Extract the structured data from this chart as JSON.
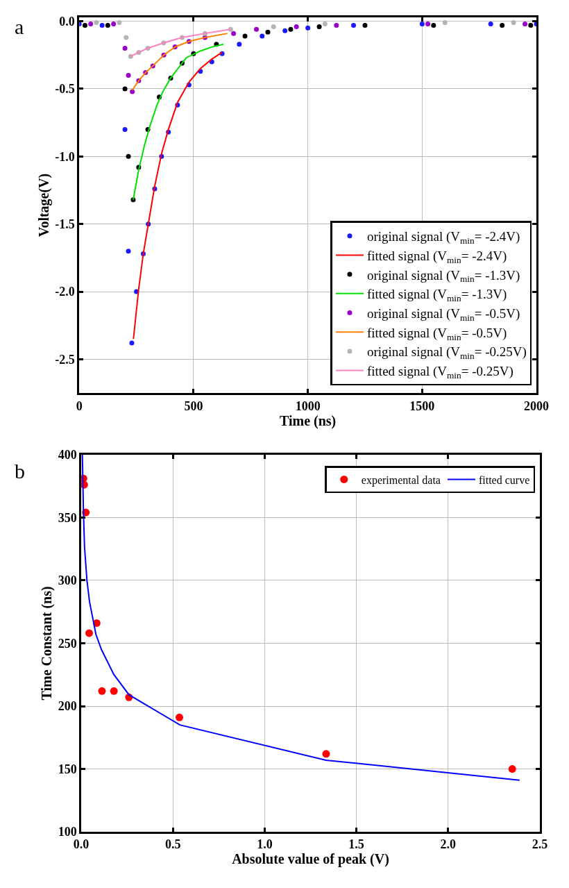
{
  "chart_data": [
    {
      "type": "scatter",
      "xlabel": "Time (ns)",
      "ylabel": "Voltage(V)",
      "annotations": [
        "a"
      ],
      "xlim": [
        0,
        2000
      ],
      "xticks": [
        0,
        500,
        1000,
        1500,
        2000
      ],
      "ylim": [
        -2.75,
        0.03
      ],
      "yticks": [
        {
          "value": 0,
          "label": "0.0"
        },
        -0.5,
        {
          "value": -1,
          "label": "-1.0"
        },
        -1.5,
        {
          "value": -2,
          "label": "-2.0"
        },
        -2.5
      ],
      "grid": true,
      "legend": "bottom right",
      "marker": "circle",
      "series": [
        {
          "name": "original signal (V$_{min}$= -2.4V)",
          "color": "#1a1aff",
          "x": [
            0,
            100,
            200,
            215,
            230,
            250,
            280,
            302,
            330,
            360,
            390,
            430,
            480,
            530,
            580,
            625,
            700,
            800,
            900,
            1000,
            1200,
            1500,
            1800,
            2000
          ],
          "values": [
            -0.02,
            -0.03,
            -0.8,
            -1.7,
            -2.38,
            -2.0,
            -1.72,
            -1.5,
            -1.24,
            -1.0,
            -0.82,
            -0.62,
            -0.47,
            -0.37,
            -0.3,
            -0.24,
            -0.17,
            -0.11,
            -0.07,
            -0.05,
            -0.03,
            -0.02,
            -0.02,
            -0.02
          ]
        },
        {
          "name": "fitted signal (V$_{min}$= -2.4V)",
          "type": "line",
          "marker": "none",
          "color": "#ff0000",
          "x": [
            237,
            260,
            280,
            302,
            330,
            360,
            390,
            430,
            480,
            530,
            580,
            625
          ],
          "values": [
            -2.35,
            -1.98,
            -1.72,
            -1.5,
            -1.22,
            -0.98,
            -0.8,
            -0.6,
            -0.45,
            -0.35,
            -0.28,
            -0.23
          ]
        },
        {
          "name": "original signal (V$_{min}$= -1.3V)",
          "color": "#000000",
          "x": [
            25,
            125,
            200,
            215,
            236,
            260,
            300,
            350,
            400,
            450,
            500,
            600,
            725,
            825,
            925,
            1050,
            1250,
            1550,
            1850,
            1975
          ],
          "values": [
            -0.03,
            -0.03,
            -0.5,
            -1.0,
            -1.32,
            -1.08,
            -0.8,
            -0.56,
            -0.42,
            -0.31,
            -0.24,
            -0.17,
            -0.11,
            -0.08,
            -0.06,
            -0.04,
            -0.03,
            -0.03,
            -0.03,
            -0.03
          ]
        },
        {
          "name": "fitted signal (V$_{min}$= -1.3V)",
          "type": "line",
          "marker": "none",
          "color": "#00e000",
          "x": [
            236,
            260,
            285,
            310,
            340,
            366,
            400,
            468,
            530,
            580,
            631
          ],
          "values": [
            -1.32,
            -1.1,
            -0.92,
            -0.77,
            -0.62,
            -0.52,
            -0.42,
            -0.27,
            -0.22,
            -0.19,
            -0.17
          ]
        },
        {
          "name": "original signal (V$_{min}$= -0.5V)",
          "color": "#9900cc",
          "x": [
            50,
            150,
            200,
            215,
            232,
            260,
            290,
            322,
            370,
            419,
            480,
            550,
            675,
            775,
            950,
            1125,
            1525,
            1950
          ],
          "values": [
            -0.02,
            -0.02,
            -0.2,
            -0.4,
            -0.52,
            -0.44,
            -0.38,
            -0.33,
            -0.25,
            -0.19,
            -0.15,
            -0.12,
            -0.09,
            -0.06,
            -0.04,
            -0.03,
            -0.02,
            -0.02
          ]
        },
        {
          "name": "fitted signal (V$_{min}$= -0.5V)",
          "type": "line",
          "marker": "none",
          "color": "#ff8000",
          "x": [
            232,
            260,
            290,
            322,
            370,
            419,
            480,
            550,
            648
          ],
          "values": [
            -0.51,
            -0.44,
            -0.38,
            -0.33,
            -0.25,
            -0.19,
            -0.15,
            -0.12,
            -0.09
          ]
        },
        {
          "name": "original signal (V$_{min}$= -0.25V)",
          "color": "#b4b4b4",
          "x": [
            75,
            175,
            205,
            225,
            260,
            300,
            369,
            450,
            550,
            662,
            850,
            1075,
            1600,
            1900
          ],
          "values": [
            -0.01,
            -0.01,
            -0.12,
            -0.26,
            -0.23,
            -0.2,
            -0.16,
            -0.12,
            -0.09,
            -0.06,
            -0.04,
            -0.02,
            -0.01,
            -0.01
          ]
        },
        {
          "name": "fitted signal (V$_{min}$= -0.25V)",
          "type": "line",
          "marker": "none",
          "color": "#ff80c0",
          "x": [
            225,
            260,
            300,
            369,
            450,
            550,
            662
          ],
          "values": [
            -0.26,
            -0.23,
            -0.2,
            -0.16,
            -0.12,
            -0.09,
            -0.06
          ]
        }
      ]
    },
    {
      "type": "scatter",
      "xlabel": "Absolute value of peak (V)",
      "ylabel": "Time Constant (ns)",
      "annotations": [
        "b"
      ],
      "xlim": [
        0,
        2.5
      ],
      "xticks": [
        {
          "value": 0,
          "label": "0.0"
        },
        0.5,
        {
          "value": 1,
          "label": "1.0"
        },
        1.5,
        {
          "value": 2,
          "label": "2.0"
        },
        2.5
      ],
      "ylim": [
        100,
        400
      ],
      "yticks": [
        100,
        150,
        200,
        250,
        300,
        350,
        400
      ],
      "grid": true,
      "legend": "top right",
      "marker": "circle",
      "series": [
        {
          "name": "experimental data",
          "color": "#ff0000",
          "x": [
            0.012,
            0.016,
            0.025,
            0.043,
            0.084,
            0.113,
            0.178,
            0.26,
            0.535,
            1.335,
            2.35
          ],
          "values": [
            381,
            376,
            354,
            258,
            266,
            212,
            212,
            207,
            191,
            162,
            150
          ]
        },
        {
          "name": "fitted curve",
          "type": "line",
          "marker": "none",
          "color": "#0000ff",
          "x": [
            0.006,
            0.012,
            0.018,
            0.031,
            0.045,
            0.08,
            0.11,
            0.178,
            0.26,
            0.538,
            1.335,
            2.39
          ],
          "values": [
            400,
            354,
            326,
            300,
            283,
            257,
            245,
            225,
            209,
            185,
            157,
            141
          ]
        }
      ]
    }
  ]
}
